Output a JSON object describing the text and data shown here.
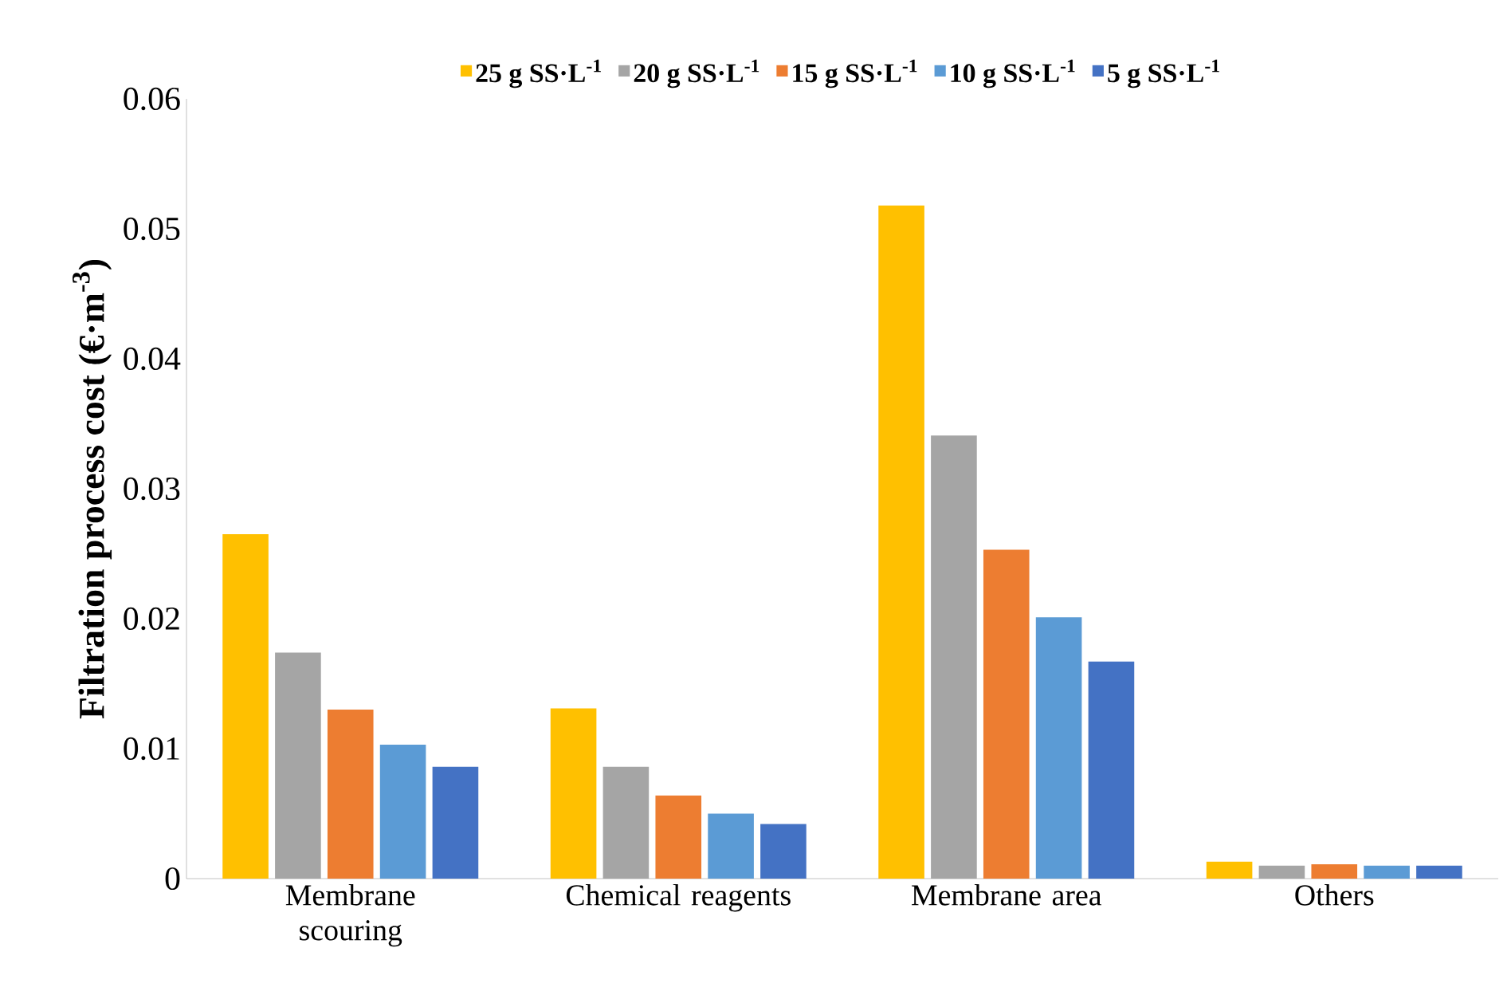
{
  "chart_data": {
    "type": "bar",
    "ylabel": "Filtration process cost (€·m$^{-3}$)",
    "categories": [
      "Membrane scouring",
      "Chemical reagents",
      "Membrane area",
      "Others"
    ],
    "series": [
      {
        "name": "25  g SS·L$^{-1}$",
        "color": "#ffc000",
        "values": [
          0.0265,
          0.0131,
          0.0518,
          0.0013
        ]
      },
      {
        "name": "20  g SS·L$^{-1}$",
        "color": "#a5a5a5",
        "values": [
          0.0174,
          0.0086,
          0.0341,
          0.001
        ]
      },
      {
        "name": "15  g SS·L$^{-1}$",
        "color": "#ed7d31",
        "values": [
          0.013,
          0.0064,
          0.0253,
          0.0011
        ]
      },
      {
        "name": "10  g SS·L$^{-1}$",
        "color": "#5b9bd5",
        "values": [
          0.0103,
          0.005,
          0.0201,
          0.001
        ]
      },
      {
        "name": "5  g SS·L$^{-1}$",
        "color": "#4472c4",
        "values": [
          0.0086,
          0.0042,
          0.0167,
          0.001
        ]
      }
    ],
    "ylim": [
      0,
      0.06
    ],
    "yticks": [
      0,
      0.01,
      0.02,
      0.03,
      0.04,
      0.05,
      0.06
    ],
    "legend": "top"
  }
}
